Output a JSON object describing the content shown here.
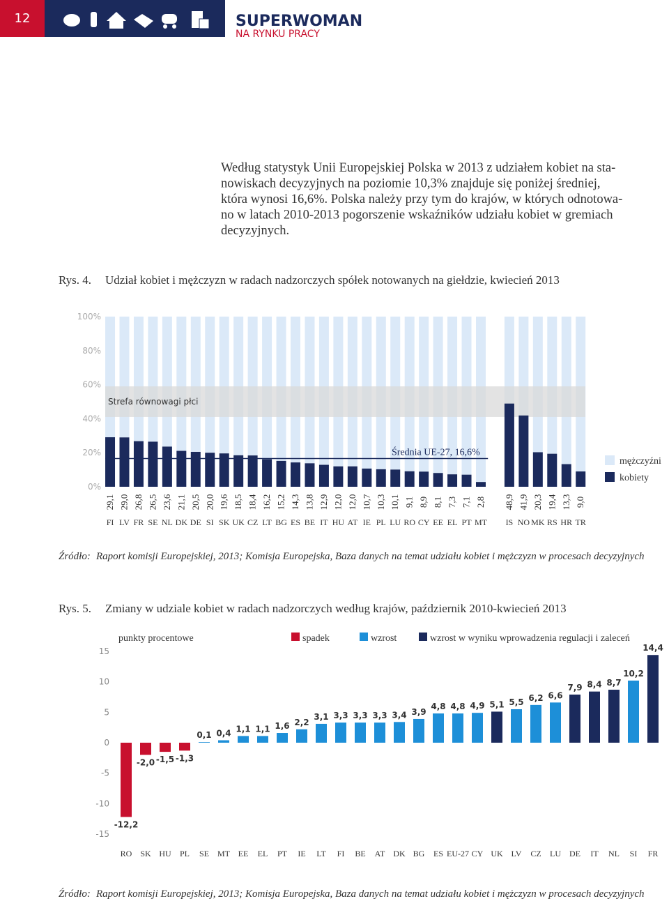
{
  "header": {
    "page_number": "12",
    "title": "SUPERWOMAN",
    "subtitle": "NA RYNKU PRACY"
  },
  "paragraph": [
    "Według statystyk Unii Europejskiej Polska w 2013 z udziałem kobiet na sta-",
    "nowiskach decyzyjnych na poziomie 10,3% znajduje się poniżej średniej,",
    "która wynosi 16,6%. Polska należy przy tym do krajów, w których odnotowa-",
    "no w latach 2010-2013 pogorszenie wskaźników udziału kobiet w gremiach",
    "decyzyjnych."
  ],
  "chart_data": [
    {
      "type": "stacked_bar",
      "figure": "Rys. 4.",
      "title": "Udział kobiet i mężczyzn w radach nadzorczych spółek notowanych na giełdzie, kwiecień 2013",
      "categories": [
        "FI",
        "LV",
        "FR",
        "SE",
        "NL",
        "DK",
        "DE",
        "SI",
        "SK",
        "UK",
        "CZ",
        "LT",
        "BG",
        "ES",
        "BE",
        "IT",
        "HU",
        "AT",
        "IE",
        "PL",
        "LU",
        "RO",
        "CY",
        "EE",
        "EL",
        "PT",
        "MT",
        null,
        "IS",
        "NO",
        "MK",
        "RS",
        "HR",
        "TR"
      ],
      "series": [
        {
          "name": "kobiety",
          "color": "#1b2a5c",
          "values": [
            29.1,
            29.0,
            26.8,
            26.5,
            23.6,
            21.1,
            20.5,
            20.0,
            19.6,
            18.5,
            18.4,
            16.2,
            15.2,
            14.3,
            13.8,
            12.9,
            12.0,
            12.0,
            10.7,
            10.3,
            10.1,
            9.1,
            8.9,
            8.1,
            7.3,
            7.1,
            2.8,
            null,
            48.9,
            41.9,
            20.3,
            19.4,
            13.3,
            9.0
          ],
          "value_labels": [
            "29,1",
            "29,0",
            "26,8",
            "26,5",
            "23,6",
            "21,1",
            "20,5",
            "20,0",
            "19,6",
            "18,5",
            "18,4",
            "16,2",
            "15,2",
            "14,3",
            "13,8",
            "12,9",
            "12,0",
            "12,0",
            "10,7",
            "10,3",
            "10,1",
            "9,1",
            "8,9",
            "8,1",
            "7,3",
            "7,1",
            "2,8",
            null,
            "48,9",
            "41,9",
            "20,3",
            "19,4",
            "13,3",
            "9,0"
          ]
        },
        {
          "name": "mężczyźni",
          "color": "#dbe9f8",
          "values": [
            70.9,
            71.0,
            73.2,
            73.5,
            76.4,
            78.9,
            79.5,
            80.0,
            80.4,
            81.5,
            81.6,
            83.8,
            84.8,
            85.7,
            86.2,
            87.1,
            88.0,
            88.0,
            89.3,
            89.7,
            89.9,
            90.9,
            91.1,
            91.9,
            92.7,
            92.9,
            97.2,
            null,
            51.1,
            58.1,
            79.7,
            80.6,
            86.7,
            91.0
          ]
        }
      ],
      "ylim": [
        0,
        100
      ],
      "yticks": [
        {
          "value": 0,
          "label": "0%"
        },
        {
          "value": 20,
          "label": "20%"
        },
        {
          "value": 40,
          "label": "40%"
        },
        {
          "value": 60,
          "label": "60%"
        },
        {
          "value": 80,
          "label": "80%"
        },
        {
          "value": 100,
          "label": "100%"
        }
      ],
      "balance_zone": {
        "label": "Strefa równowagi płci",
        "range": [
          41,
          59
        ]
      },
      "average": {
        "label": "Średnia UE-27, 16,6%",
        "value": 16.6
      },
      "source": {
        "label": "Źródło:",
        "text": "Raport komisji Europejskiej, 2013; Komisja Europejska, Baza danych na temat udziału kobiet i mężczyzn w procesach decyzyjnych"
      }
    },
    {
      "type": "bar",
      "figure": "Rys. 5.",
      "title": "Zmiany w udziale kobiet w radach nadzorczych według krajów, październik 2010-kwiecień 2013",
      "y_label": "punkty procentowe",
      "categories": [
        "RO",
        "SK",
        "HU",
        "PL",
        "SE",
        "MT",
        "EE",
        "EL",
        "PT",
        "IE",
        "LT",
        "FI",
        "BE",
        "AT",
        "DK",
        "BG",
        "ES",
        "EU-27",
        "CY",
        "UK",
        "LV",
        "CZ",
        "LU",
        "DE",
        "IT",
        "NL",
        "SI",
        "FR"
      ],
      "series": [
        {
          "name": "spadek",
          "color": "#c8102e",
          "values": [
            -12.2,
            -2.0,
            -1.5,
            -1.3,
            null,
            null,
            null,
            null,
            null,
            null,
            null,
            null,
            null,
            null,
            null,
            null,
            null,
            null,
            null,
            null,
            null,
            null,
            null,
            null,
            null,
            null,
            null,
            null
          ],
          "value_labels": [
            "-12,2",
            "-2,0",
            "-1,5",
            "-1,3",
            null,
            null,
            null,
            null,
            null,
            null,
            null,
            null,
            null,
            null,
            null,
            null,
            null,
            null,
            null,
            null,
            null,
            null,
            null,
            null,
            null,
            null,
            null,
            null
          ]
        },
        {
          "name": "wzrost",
          "color": "#1d8fd8",
          "values": [
            null,
            null,
            null,
            null,
            0.1,
            0.4,
            1.1,
            1.1,
            1.6,
            2.2,
            3.1,
            3.3,
            3.3,
            3.3,
            3.4,
            3.9,
            4.8,
            4.8,
            4.9,
            null,
            5.5,
            6.2,
            6.6,
            null,
            null,
            null,
            10.2,
            null
          ],
          "value_labels": [
            null,
            null,
            null,
            null,
            "0,1",
            "0,4",
            "1,1",
            "1,1",
            "1,6",
            "2,2",
            "3,1",
            "3,3",
            "3,3",
            "3,3",
            "3,4",
            "3,9",
            "4,8",
            "4,8",
            "4,9",
            null,
            "5,5",
            "6,2",
            "6,6",
            null,
            null,
            null,
            "10,2",
            null
          ]
        },
        {
          "name": "wzrost w wyniku wprowadzenia regulacji i zaleceń",
          "color": "#1b2a5c",
          "values": [
            null,
            null,
            null,
            null,
            null,
            null,
            null,
            null,
            null,
            null,
            null,
            null,
            null,
            null,
            null,
            null,
            null,
            null,
            null,
            5.1,
            null,
            null,
            null,
            7.9,
            8.4,
            8.7,
            null,
            14.4
          ],
          "value_labels": [
            null,
            null,
            null,
            null,
            null,
            null,
            null,
            null,
            null,
            null,
            null,
            null,
            null,
            null,
            null,
            null,
            null,
            null,
            null,
            "5,1",
            null,
            null,
            null,
            "7,9",
            "8,4",
            "8,7",
            null,
            "14,4"
          ]
        }
      ],
      "ylim": [
        -15,
        15
      ],
      "yticks": [
        -15,
        -10,
        -5,
        0,
        5,
        10,
        15
      ],
      "source": {
        "label": "Źródło:",
        "text": "Raport komisji Europejskiej, 2013; Komisja Europejska, Baza danych na temat udziału kobiet i mężczyzn w procesach decyzyjnych"
      }
    }
  ]
}
